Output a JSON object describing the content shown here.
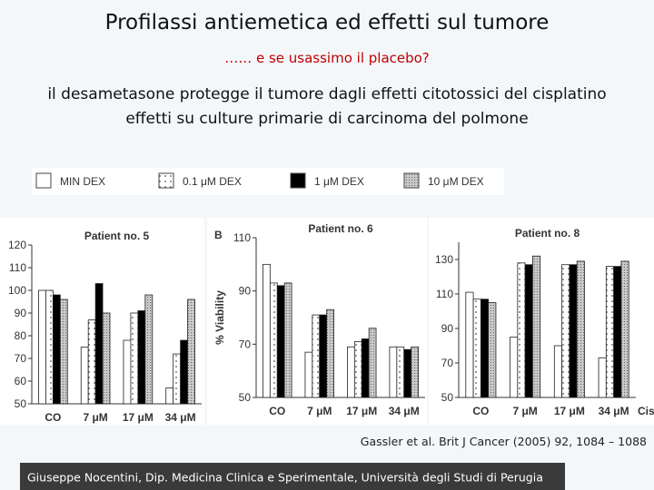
{
  "slide": {
    "title": "Profilassi antiemetica ed effetti sul tumore",
    "subtitle": "…… e se usassimo il placebo?",
    "lines": [
      "il desametasone protegge il tumore dagli effetti citotossici del cisplatino",
      "effetti su culture primarie di carcinoma del polmone"
    ],
    "citation": "Gassler et al. Brit J Cancer (2005) 92, 1084 – 1088",
    "footer": "Giuseppe Nocentini, Dip. Medicina Clinica e Sperimentale, Università degli Studi di Perugia"
  },
  "chart_data": [
    {
      "type": "bar",
      "title": "Patient no. 5",
      "categories": [
        "CO",
        "7 μM",
        "17 μM",
        "34 μM"
      ],
      "series": [
        {
          "name": "MIN DEX",
          "color": "#ffffff",
          "pattern": "none",
          "values": [
            100,
            75,
            78,
            57
          ]
        },
        {
          "name": "0.1 μM DEX",
          "color": "#ffffff",
          "pattern": "dots",
          "values": [
            100,
            87,
            90,
            72
          ]
        },
        {
          "name": "1 μM DEX",
          "color": "#000000",
          "pattern": "none",
          "values": [
            98,
            103,
            91,
            78
          ]
        },
        {
          "name": "10 μM DEX",
          "color": "#b8b8b8",
          "pattern": "hatch",
          "values": [
            96,
            90,
            98,
            96
          ]
        }
      ],
      "ylim": [
        50,
        120
      ],
      "yticks": [
        50,
        60,
        70,
        80,
        90,
        100,
        110,
        120
      ]
    },
    {
      "type": "bar",
      "title": "Patient no. 6",
      "panel_label": "B",
      "y_label": "% Viability",
      "categories": [
        "CO",
        "7 μM",
        "17 μM",
        "34 μM"
      ],
      "series": [
        {
          "color": "#ffffff",
          "pattern": "none",
          "values": [
            100,
            67,
            69,
            69
          ]
        },
        {
          "color": "#ffffff",
          "pattern": "dots",
          "values": [
            93,
            81,
            71,
            69
          ]
        },
        {
          "color": "#000000",
          "pattern": "none",
          "values": [
            92,
            81,
            72,
            68
          ]
        },
        {
          "color": "#b8b8b8",
          "pattern": "hatch",
          "values": [
            93,
            83,
            76,
            69
          ]
        }
      ],
      "ylim": [
        50,
        110
      ],
      "yticks": [
        50,
        70,
        90,
        110
      ]
    },
    {
      "type": "bar",
      "title": "Patient no. 8",
      "x_label": "Cispl",
      "categories": [
        "CO",
        "7 μM",
        "17 μM",
        "34 μM"
      ],
      "series": [
        {
          "color": "#ffffff",
          "pattern": "none",
          "values": [
            111,
            85,
            80,
            73
          ]
        },
        {
          "color": "#ffffff",
          "pattern": "dots",
          "values": [
            107,
            128,
            127,
            126
          ]
        },
        {
          "color": "#000000",
          "pattern": "none",
          "values": [
            107,
            127,
            127,
            126
          ]
        },
        {
          "color": "#b8b8b8",
          "pattern": "hatch",
          "values": [
            105,
            132,
            129,
            129
          ]
        }
      ],
      "ylim": [
        50,
        140
      ],
      "yticks": [
        50,
        70,
        90,
        110,
        130
      ]
    }
  ]
}
